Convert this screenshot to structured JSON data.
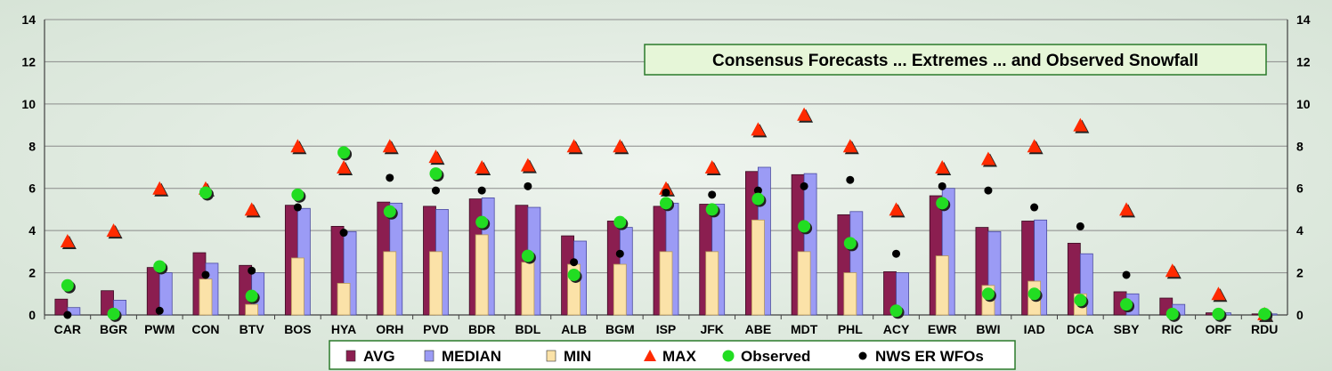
{
  "chart_data": {
    "type": "bar",
    "title": "Consensus Forecasts ... Extremes ... and Observed Snowfall",
    "xlabel": "",
    "ylabel": "",
    "ylim": [
      0,
      14
    ],
    "yticks": [
      0,
      2,
      4,
      6,
      8,
      10,
      12,
      14
    ],
    "secondary_y_axis": true,
    "grid": "horizontal",
    "legend_position": "bottom-center",
    "categories": [
      "CAR",
      "BGR",
      "PWM",
      "CON",
      "BTV",
      "BOS",
      "HYA",
      "ORH",
      "PVD",
      "BDR",
      "BDL",
      "ALB",
      "BGM",
      "ISP",
      "JFK",
      "ABE",
      "MDT",
      "PHL",
      "ACY",
      "EWR",
      "BWI",
      "IAD",
      "DCA",
      "SBY",
      "RIC",
      "ORF",
      "RDU"
    ],
    "series": [
      {
        "name": "AVG",
        "kind": "bar",
        "color": "#8b1e50",
        "values": [
          0.75,
          1.15,
          2.25,
          2.95,
          2.35,
          5.2,
          4.2,
          5.35,
          5.15,
          5.5,
          5.2,
          3.75,
          4.45,
          5.15,
          5.25,
          6.8,
          6.65,
          4.75,
          2.05,
          5.65,
          4.15,
          4.45,
          3.4,
          1.1,
          0.8,
          0.1,
          0.05
        ]
      },
      {
        "name": "MEDIAN",
        "kind": "bar",
        "color": "#9b9bf5",
        "values": [
          0.35,
          0.7,
          2.0,
          2.45,
          2.0,
          5.05,
          3.95,
          5.3,
          5.0,
          5.55,
          5.1,
          3.5,
          4.15,
          5.3,
          5.25,
          7.0,
          6.7,
          4.9,
          2.0,
          6.0,
          3.95,
          4.5,
          2.9,
          1.0,
          0.5,
          0.1,
          0.05
        ]
      },
      {
        "name": "MIN",
        "kind": "bar",
        "color": "#fbe2a8",
        "values": [
          0,
          0,
          0,
          1.7,
          0.5,
          2.7,
          1.5,
          3.0,
          3.0,
          3.8,
          2.5,
          2.4,
          2.4,
          3.0,
          3.0,
          4.5,
          3.0,
          2.0,
          0,
          2.8,
          1.4,
          1.6,
          1.0,
          0,
          0,
          0,
          0
        ]
      },
      {
        "name": "MAX",
        "kind": "triangle",
        "color": "#ff2a00",
        "values": [
          3.5,
          4.0,
          6.0,
          6.0,
          5.0,
          8.0,
          7.0,
          8.0,
          7.5,
          7.0,
          7.1,
          8.0,
          8.0,
          6.0,
          7.0,
          8.8,
          9.5,
          8.0,
          5.0,
          7.0,
          7.4,
          8.0,
          9.0,
          5.0,
          2.1,
          1.0,
          0.05
        ]
      },
      {
        "name": "Observed",
        "kind": "circle",
        "color": "#22dd22",
        "values": [
          1.4,
          0.05,
          2.3,
          5.8,
          0.9,
          5.7,
          7.7,
          4.9,
          6.7,
          4.4,
          2.8,
          1.9,
          4.4,
          5.3,
          5.0,
          5.5,
          4.2,
          3.4,
          0.2,
          5.3,
          1.0,
          1.0,
          0.7,
          0.5,
          0.05,
          0.05,
          0.05
        ]
      },
      {
        "name": "NWS ER WFOs",
        "kind": "dot",
        "color": "#000000",
        "values": [
          0,
          0,
          0.2,
          1.9,
          2.1,
          5.1,
          3.9,
          6.5,
          5.9,
          5.9,
          6.1,
          2.5,
          2.9,
          5.8,
          5.7,
          5.9,
          6.1,
          6.4,
          2.9,
          6.1,
          5.9,
          5.1,
          4.2,
          1.9,
          0,
          0,
          0
        ]
      }
    ]
  }
}
